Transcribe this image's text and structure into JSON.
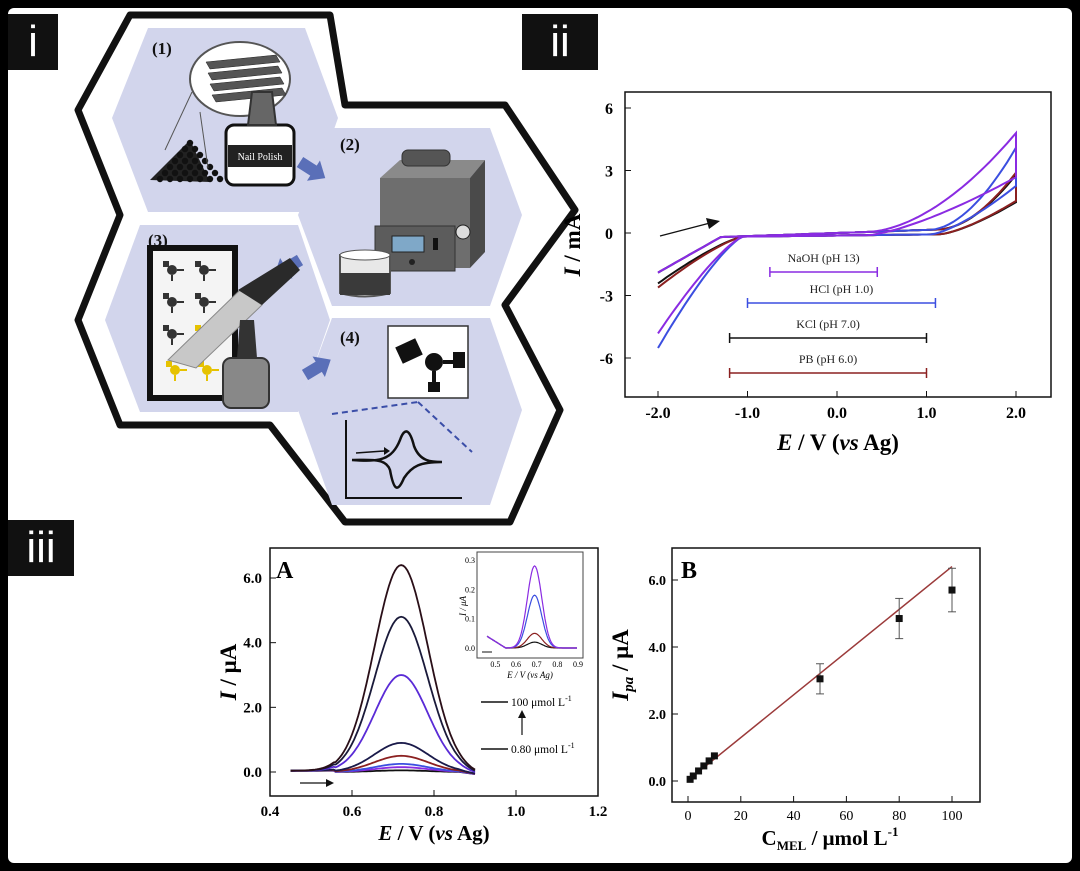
{
  "panels": {
    "i": "i",
    "ii": "ii",
    "iii": "iii"
  },
  "steps": {
    "s1": "(1)",
    "s2": "(2)",
    "s3": "(3)",
    "s4": "(4)",
    "polish": "Nail Polish"
  },
  "colors": {
    "hex_fill": "#d2d5ec",
    "arrow": "#5a6fb8",
    "purple": "#8a2be2",
    "violet": "#9a3bd0",
    "blue": "#3b4ee0",
    "black": "#111111",
    "brown": "#8b2020"
  },
  "cv_chart": {
    "type": "line",
    "xlabel_e": "E",
    "xlabel_rest": " / V (",
    "xlabel_vs": "vs",
    "xlabel_end": " Ag)",
    "ylabel_i": "I",
    "ylabel_rest": " / mA",
    "xlim": [
      -2.0,
      2.0
    ],
    "ylim": [
      -6,
      6
    ],
    "xticks": [
      "-2.0",
      "-1.0",
      "0.0",
      "1.0",
      "2.0"
    ],
    "yticks": [
      "-6",
      "-3",
      "0",
      "3",
      "6"
    ],
    "windows": [
      {
        "label": "NaOH (pH 13)",
        "from": -0.75,
        "to": 0.45,
        "color": "#8a2be2"
      },
      {
        "label": "HCl (pH 1.0)",
        "from": -1.0,
        "to": 1.1,
        "color": "#3b4ee0"
      },
      {
        "label": "KCl (pH 7.0)",
        "from": -1.2,
        "to": 1.0,
        "color": "#111111"
      },
      {
        "label": "PB (pH 6.0)",
        "from": -1.2,
        "to": 1.0,
        "color": "#8b2020"
      }
    ]
  },
  "dpv_chart": {
    "type": "line",
    "panel_label": "A",
    "xlabel_e": "E",
    "xlabel_rest": " / V (",
    "xlabel_vs": "vs",
    "xlabel_end": " Ag)",
    "ylabel_i": "I",
    "ylabel_rest": " / μA",
    "xlim": [
      0.4,
      1.2
    ],
    "ylim": [
      -0.3,
      6.8
    ],
    "xticks": [
      "0.4",
      "0.6",
      "0.8",
      "1.0",
      "1.2"
    ],
    "yticks": [
      "0.0",
      "2.0",
      "4.0",
      "6.0"
    ],
    "peak_potential": 0.72,
    "peak_currents": [
      0.05,
      0.15,
      0.25,
      0.5,
      0.9,
      3.0,
      4.8,
      6.4
    ],
    "legend_top": "100 μmol L",
    "legend_bottom": "0.80 μmol L",
    "legend_exp": "-1",
    "inset": {
      "ylabel": "I / μA",
      "xlabel": "E / V (vs Ag)",
      "xticks": [
        "0.5",
        "0.6",
        "0.7",
        "0.8",
        "0.9"
      ],
      "yticks": [
        "0.0",
        "0.1",
        "0.2",
        "0.3"
      ],
      "peak_currents": [
        0.02,
        0.05,
        0.18,
        0.28
      ]
    }
  },
  "cal_chart": {
    "type": "scatter",
    "panel_label": "B",
    "ylabel_i": "I",
    "ylabel_sub": "pa",
    "ylabel_rest": " / μA",
    "xlabel_c": "C",
    "xlabel_sub": "MEL",
    "xlabel_rest": " / μmol L",
    "xlabel_exp": "-1",
    "xlim": [
      -5,
      105
    ],
    "ylim": [
      -0.4,
      6.8
    ],
    "xticks": [
      "0",
      "20",
      "40",
      "60",
      "80",
      "100"
    ],
    "yticks": [
      "0.0",
      "2.0",
      "4.0",
      "6.0"
    ],
    "points": [
      {
        "x": 0.8,
        "y": 0.05,
        "err": 0
      },
      {
        "x": 2,
        "y": 0.15,
        "err": 0
      },
      {
        "x": 4,
        "y": 0.3,
        "err": 0
      },
      {
        "x": 6,
        "y": 0.45,
        "err": 0
      },
      {
        "x": 8,
        "y": 0.6,
        "err": 0
      },
      {
        "x": 10,
        "y": 0.75,
        "err": 0
      },
      {
        "x": 50,
        "y": 3.05,
        "err": 0.45
      },
      {
        "x": 80,
        "y": 4.85,
        "err": 0.6
      },
      {
        "x": 100,
        "y": 5.7,
        "err": 0.65
      }
    ],
    "fit": {
      "x0": 0,
      "y0": 0.02,
      "x1": 100,
      "y1": 6.4
    }
  }
}
